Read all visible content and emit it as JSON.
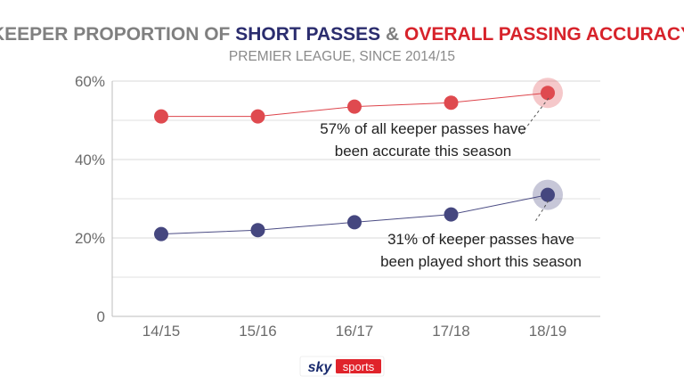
{
  "header": {
    "title_parts": [
      {
        "text": "KEEPER PROPORTION OF ",
        "role": "neutral"
      },
      {
        "text": "SHORT PASSES",
        "role": "series_short"
      },
      {
        "text": " & ",
        "role": "neutral"
      },
      {
        "text": "OVERALL PASSING ACCURACY",
        "role": "series_accuracy"
      }
    ],
    "subtitle": "PREMIER LEAGUE, SINCE 2014/15"
  },
  "colors": {
    "neutral": "#808080",
    "series_short": "#2b2d6e",
    "series_accuracy": "#d7232b",
    "short_marker": "#45477f",
    "accuracy_marker": "#df4a4f",
    "grid": "#d9d9d9",
    "axis": "#bdbdbd"
  },
  "chart_data": {
    "type": "line",
    "categories": [
      "14/15",
      "15/16",
      "16/17",
      "17/18",
      "18/19"
    ],
    "ylim": [
      0,
      60
    ],
    "yticks": [
      0,
      20,
      40,
      60
    ],
    "ytick_labels": [
      "0",
      "20%",
      "40%",
      "60%"
    ],
    "grid": true,
    "series": [
      {
        "key": "accuracy",
        "values": [
          51,
          51,
          53.5,
          54.5,
          57
        ]
      },
      {
        "key": "short",
        "values": [
          21,
          22,
          24,
          26,
          31
        ]
      }
    ],
    "annotations": [
      {
        "series": "accuracy",
        "index": 4,
        "lines": [
          "57% of all keeper passes have",
          "been accurate this season"
        ]
      },
      {
        "series": "short",
        "index": 4,
        "lines": [
          "31% of keeper passes have",
          "been played short this season"
        ]
      }
    ]
  },
  "footer": {
    "logo_sky": "sky",
    "logo_sports": "sports"
  }
}
